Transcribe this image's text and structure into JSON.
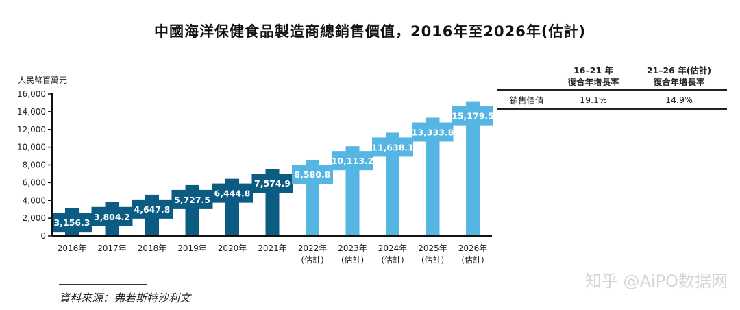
{
  "title": "中國海洋保健食品製造商總銷售價值，2016年至2026年(估計)",
  "chart_data": {
    "type": "bar",
    "title": "中國海洋保健食品製造商總銷售價值，2016年至2026年(估計)",
    "ylabel": "人民幣百萬元",
    "ylim": [
      0,
      16000
    ],
    "yticks": [
      0,
      2000,
      4000,
      6000,
      8000,
      10000,
      12000,
      14000,
      16000
    ],
    "ytick_labels": [
      "0",
      "2,000",
      "4,000",
      "6,000",
      "8,000",
      "10,000",
      "12,000",
      "14,000",
      "16,000"
    ],
    "categories": [
      "2016年",
      "2017年",
      "2018年",
      "2019年",
      "2020年",
      "2021年",
      "2022年",
      "2023年",
      "2024年",
      "2025年",
      "2026年"
    ],
    "category_sublabels": [
      "",
      "",
      "",
      "",
      "",
      "",
      "(估計)",
      "(估計)",
      "(估計)",
      "(估計)",
      "(估計)"
    ],
    "values": [
      3156.3,
      3804.2,
      4647.8,
      5727.5,
      6444.8,
      7574.9,
      8580.8,
      10113.2,
      11638.1,
      13333.8,
      15179.5
    ],
    "value_labels": [
      "3,156.3",
      "3,804.2",
      "4,647.8",
      "5,727.5",
      "6,444.8",
      "7,574.9",
      "8,580.8",
      "10,113.2",
      "11,638.1",
      "13,333.8",
      "15,179.5"
    ],
    "estimated": [
      false,
      false,
      false,
      false,
      false,
      false,
      true,
      true,
      true,
      true,
      true
    ],
    "colors": {
      "actual": "#0b5b83",
      "estimated": "#55b5e3"
    },
    "grid": false
  },
  "cagr_table": {
    "header1_l1": "16–21 年",
    "header1_l2": "復合年增長率",
    "header2_l1": "21–26 年(估計)",
    "header2_l2": "復合年增長率",
    "row_label": "銷售價值",
    "v1": "19.1%",
    "v2": "14.9%"
  },
  "source": "資料來源：弗若斯特沙利文",
  "watermark": "知乎 @AiPO数据网"
}
